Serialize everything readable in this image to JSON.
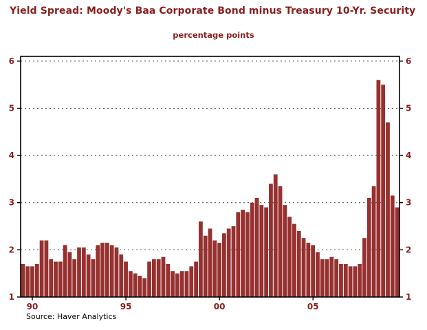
{
  "title": "Yield Spread: Moody's Baa Corporate Bond minus Treasury 10-Yr. Security",
  "subtitle": "percentage points",
  "source": "Source: Haver Analytics",
  "colors": {
    "accent": "#8b1e1e",
    "bar": "#963130",
    "frame": "#000000"
  },
  "chart_data": {
    "type": "bar",
    "title": "Yield Spread: Moody's Baa Corporate Bond minus Treasury 10-Yr. Security",
    "subtitle": "percentage points",
    "source": "Source: Haver Analytics",
    "frequency": "quarterly",
    "ylim": [
      1,
      6
    ],
    "yticks": [
      1,
      2,
      3,
      4,
      5,
      6
    ],
    "grid": "dashed-horizontal",
    "legend": "none",
    "xticks": [
      {
        "label": "90",
        "index": 2
      },
      {
        "label": "95",
        "index": 22
      },
      {
        "label": "00",
        "index": 42
      },
      {
        "label": "05",
        "index": 62
      }
    ],
    "x": [
      "1989Q3",
      "1989Q4",
      "1990Q1",
      "1990Q2",
      "1990Q3",
      "1990Q4",
      "1991Q1",
      "1991Q2",
      "1991Q3",
      "1991Q4",
      "1992Q1",
      "1992Q2",
      "1992Q3",
      "1992Q4",
      "1993Q1",
      "1993Q2",
      "1993Q3",
      "1993Q4",
      "1994Q1",
      "1994Q2",
      "1994Q3",
      "1994Q4",
      "1995Q1",
      "1995Q2",
      "1995Q3",
      "1995Q4",
      "1996Q1",
      "1996Q2",
      "1996Q3",
      "1996Q4",
      "1997Q1",
      "1997Q2",
      "1997Q3",
      "1997Q4",
      "1998Q1",
      "1998Q2",
      "1998Q3",
      "1998Q4",
      "1999Q1",
      "1999Q2",
      "1999Q3",
      "1999Q4",
      "2000Q1",
      "2000Q2",
      "2000Q3",
      "2000Q4",
      "2001Q1",
      "2001Q2",
      "2001Q3",
      "2001Q4",
      "2002Q1",
      "2002Q2",
      "2002Q3",
      "2002Q4",
      "2003Q1",
      "2003Q2",
      "2003Q3",
      "2003Q4",
      "2004Q1",
      "2004Q2",
      "2004Q3",
      "2004Q4",
      "2005Q1",
      "2005Q2",
      "2005Q3",
      "2005Q4",
      "2006Q1",
      "2006Q2",
      "2006Q3",
      "2006Q4",
      "2007Q1",
      "2007Q2",
      "2007Q3",
      "2007Q4",
      "2008Q1",
      "2008Q2",
      "2008Q3",
      "2008Q4",
      "2009Q1",
      "2009Q2",
      "2009Q3"
    ],
    "values": [
      1.7,
      1.65,
      1.65,
      1.7,
      2.2,
      2.2,
      1.8,
      1.75,
      1.75,
      2.1,
      1.95,
      1.8,
      2.05,
      2.05,
      1.9,
      1.8,
      2.1,
      2.15,
      2.15,
      2.1,
      2.05,
      1.9,
      1.75,
      1.55,
      1.5,
      1.45,
      1.4,
      1.75,
      1.8,
      1.8,
      1.85,
      1.7,
      1.55,
      1.5,
      1.55,
      1.55,
      1.65,
      1.75,
      2.6,
      2.3,
      2.45,
      2.2,
      2.15,
      2.35,
      2.45,
      2.5,
      2.8,
      2.85,
      2.8,
      3.0,
      3.1,
      2.95,
      2.9,
      3.4,
      3.6,
      3.35,
      2.95,
      2.7,
      2.55,
      2.4,
      2.25,
      2.15,
      2.1,
      1.95,
      1.8,
      1.8,
      1.85,
      1.8,
      1.7,
      1.7,
      1.65,
      1.65,
      1.7,
      2.25,
      3.1,
      3.35,
      5.6,
      5.5,
      4.7,
      3.15,
      2.9
    ]
  }
}
